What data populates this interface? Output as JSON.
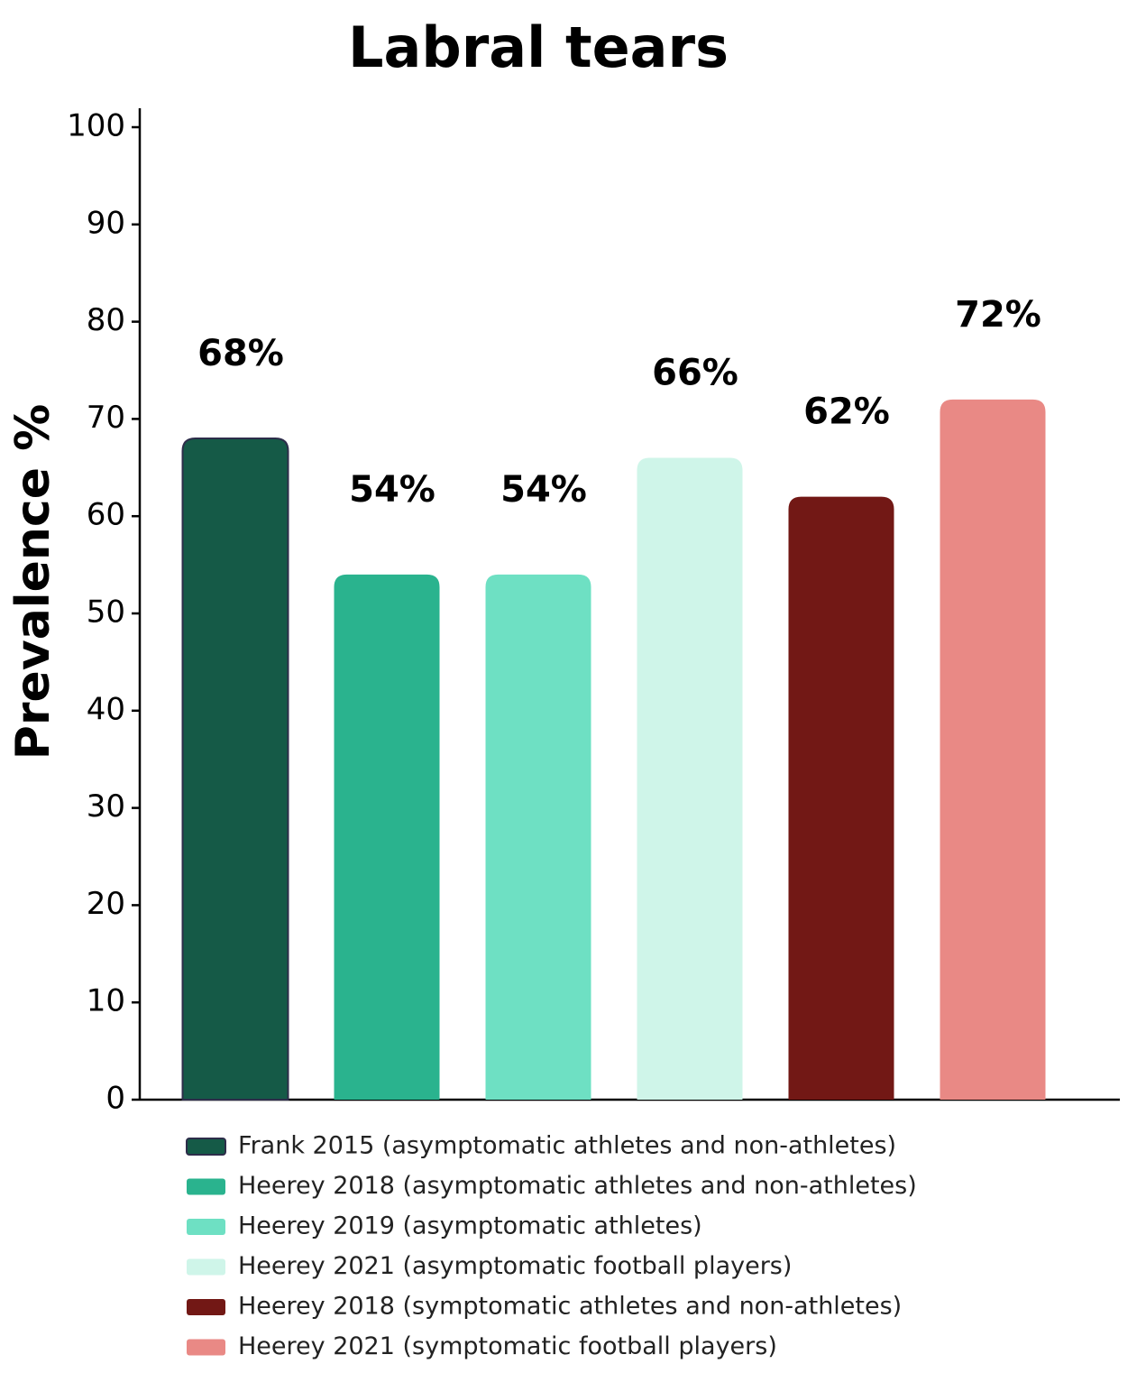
{
  "chart_data": {
    "type": "bar",
    "title": "Labral tears",
    "y_label": "Prevalence %",
    "series": [
      {
        "name": "Frank 2015 (asymptomatic athletes and non-athletes)",
        "color": "#155a47",
        "values": [
          68
        ],
        "value_labels": [
          "68%"
        ]
      },
      {
        "name": "Heerey 2018 (asymptomatic athletes and non-athletes)",
        "color": "#2ab38e",
        "values": [
          54
        ],
        "value_labels": [
          "54%"
        ]
      },
      {
        "name": "Heerey 2019 (asymptomatic athletes)",
        "color": "#6ee0c3",
        "values": [
          54
        ],
        "value_labels": [
          "54%"
        ]
      },
      {
        "name": "Heerey 2021 (asymptomatic football players)",
        "color": "#cff5e9",
        "values": [
          66
        ],
        "value_labels": [
          "66%"
        ]
      },
      {
        "name": "Heerey 2018 (symptomatic athletes and non-athletes)",
        "color": "#721815",
        "values": [
          62
        ],
        "value_labels": [
          "62%"
        ]
      },
      {
        "name": "Heerey 2021 (symptomatic football players)",
        "color": "#e98985",
        "values": [
          72
        ],
        "value_labels": [
          "72%"
        ]
      }
    ],
    "ylim": [
      0,
      100
    ],
    "yticks": [
      0,
      10,
      20,
      30,
      40,
      50,
      60,
      70,
      80,
      90,
      100
    ],
    "legend": "bottom"
  }
}
